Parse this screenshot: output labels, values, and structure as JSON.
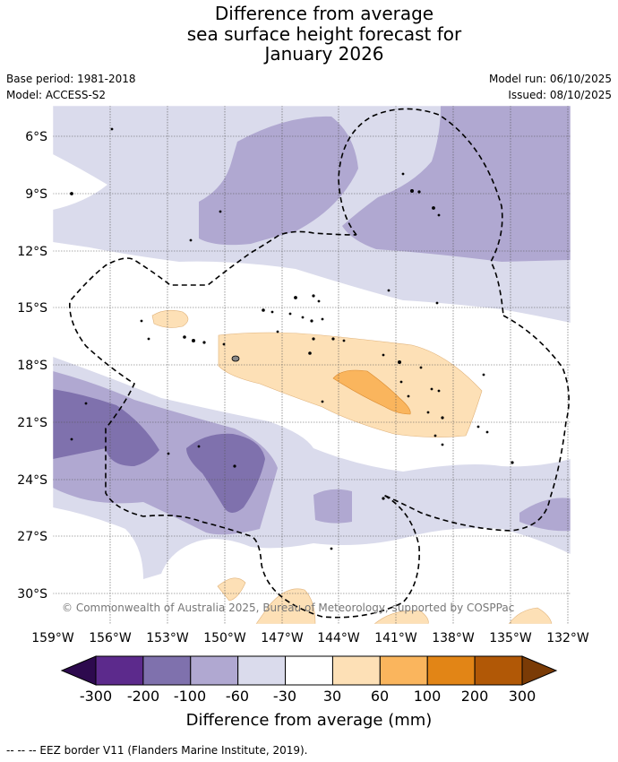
{
  "title": {
    "line1": "Difference from average",
    "line2": "sea surface height forecast for",
    "line3": "January 2026"
  },
  "meta": {
    "base_period": "Base period: 1981-2018",
    "model": "Model: ACCESS-S2",
    "model_run": "Model run: 06/10/2025",
    "issued": "Issued: 08/10/2025"
  },
  "map": {
    "lat_labels": [
      "6°S",
      "9°S",
      "12°S",
      "15°S",
      "18°S",
      "21°S",
      "24°S",
      "27°S",
      "30°S"
    ],
    "lon_labels": [
      "159°W",
      "156°W",
      "153°W",
      "150°W",
      "147°W",
      "144°W",
      "141°W",
      "138°W",
      "135°W",
      "132°W"
    ],
    "copyright": "© Commonwealth of Australia 2025, Bureau of Meteorology, supported by COSPPac"
  },
  "colorbar": {
    "ticks": [
      "-300",
      "-200",
      "-100",
      "-60",
      "-30",
      "30",
      "60",
      "100",
      "200",
      "300"
    ],
    "colors": {
      "under": "#2d0a4e",
      "bins": [
        "#5c2a8c",
        "#7f71ad",
        "#b0a8d1",
        "#dadbec",
        "#ffffff",
        "#fde0b6",
        "#fab55d",
        "#e28516",
        "#b15806"
      ],
      "over": "#7a3b06"
    },
    "label": "Difference from average (mm)"
  },
  "footnote": "-- -- -- EEZ border V11 (Flanders Marine Institute, 2019)."
}
